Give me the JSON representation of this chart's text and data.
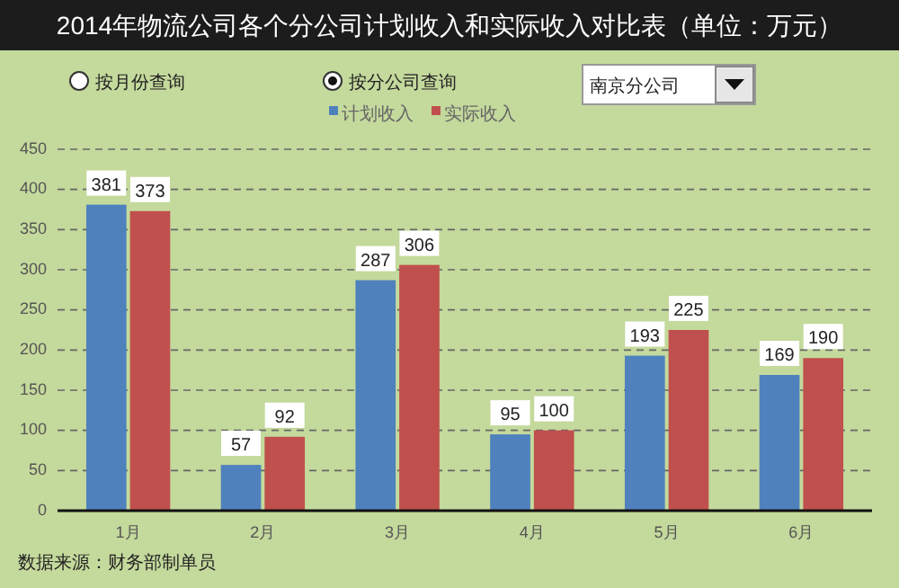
{
  "chart_data": {
    "type": "bar",
    "title": "2014年物流公司各个分公司计划收入和实际收入对比表（单位：万元）",
    "categories": [
      "1月",
      "2月",
      "3月",
      "4月",
      "5月",
      "6月"
    ],
    "series": [
      {
        "name": "计划收入",
        "color": "#4f81bd",
        "values": [
          381,
          57,
          287,
          95,
          193,
          169
        ]
      },
      {
        "name": "实际收入",
        "color": "#c0504d",
        "values": [
          373,
          92,
          306,
          100,
          225,
          190
        ]
      }
    ],
    "ylim": [
      0,
      450
    ],
    "yticks": [
      0,
      50,
      100,
      150,
      200,
      250,
      300,
      350,
      400,
      450
    ],
    "grid": "y",
    "legend": "top",
    "data_labels": true,
    "annotations": [
      "按月份查询",
      "按分公司查询",
      "南京分公司",
      "数据来源：财务部制单员"
    ]
  }
}
